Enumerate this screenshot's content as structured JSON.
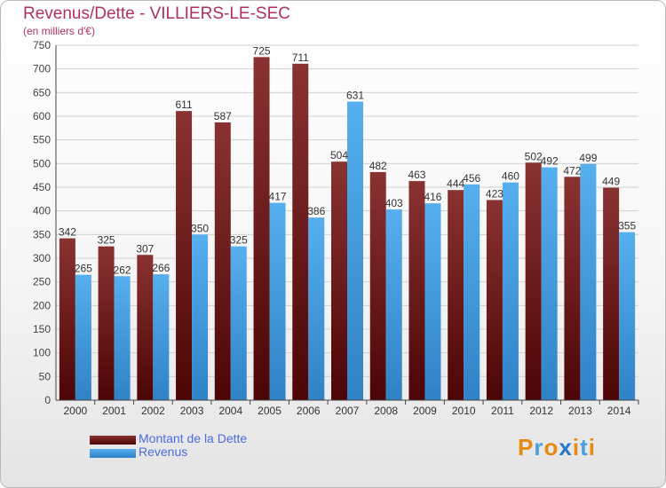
{
  "chart_data": {
    "type": "bar",
    "title": "Revenus/Dette - VILLIERS-LE-SEC",
    "subtitle": "(en milliers d'€)",
    "xlabel": "",
    "ylabel": "",
    "ylim": [
      0,
      750
    ],
    "ytick_step": 50,
    "grid": true,
    "categories": [
      "2000",
      "2001",
      "2002",
      "2003",
      "2004",
      "2005",
      "2006",
      "2007",
      "2008",
      "2009",
      "2010",
      "2011",
      "2012",
      "2013",
      "2014"
    ],
    "series": [
      {
        "name": "Montant de la Dette",
        "color": "#7b1c1c",
        "values": [
          342,
          325,
          307,
          611,
          587,
          725,
          711,
          504,
          482,
          463,
          444,
          423,
          502,
          472,
          449
        ]
      },
      {
        "name": "Revenus",
        "color": "#3f9ee0",
        "values": [
          265,
          262,
          266,
          350,
          325,
          417,
          386,
          631,
          403,
          416,
          456,
          460,
          492,
          499,
          355
        ]
      }
    ],
    "legend": "bottom-left"
  },
  "logo": {
    "letters": [
      "P",
      "r",
      "o",
      "x",
      "i",
      "t",
      "i"
    ],
    "colors": [
      "#e58a12",
      "#4aa0dc",
      "#e58a12",
      "#2a77c8",
      "#e58a12",
      "#4aa0dc",
      "#e58a12"
    ]
  }
}
